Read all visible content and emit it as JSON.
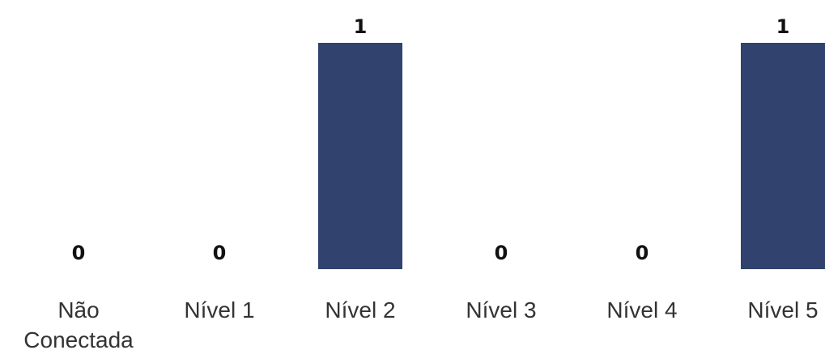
{
  "chart_data": {
    "type": "bar",
    "categories": [
      "Não Conectada",
      "Nível 1",
      "Nível 2",
      "Nível 3",
      "Nível 4",
      "Nível 5"
    ],
    "category_lines": [
      [
        "Não",
        "Conectada"
      ],
      [
        "Nível 1"
      ],
      [
        "Nível 2"
      ],
      [
        "Nível 3"
      ],
      [
        "Nível 4"
      ],
      [
        "Nível 5"
      ]
    ],
    "values": [
      0,
      0,
      1,
      0,
      0,
      1
    ],
    "value_labels": [
      "0",
      "0",
      "1",
      "0",
      "0",
      "1"
    ],
    "ylim": [
      0,
      1
    ],
    "grid": false,
    "legend": "none",
    "bar_color": "#31426f"
  }
}
